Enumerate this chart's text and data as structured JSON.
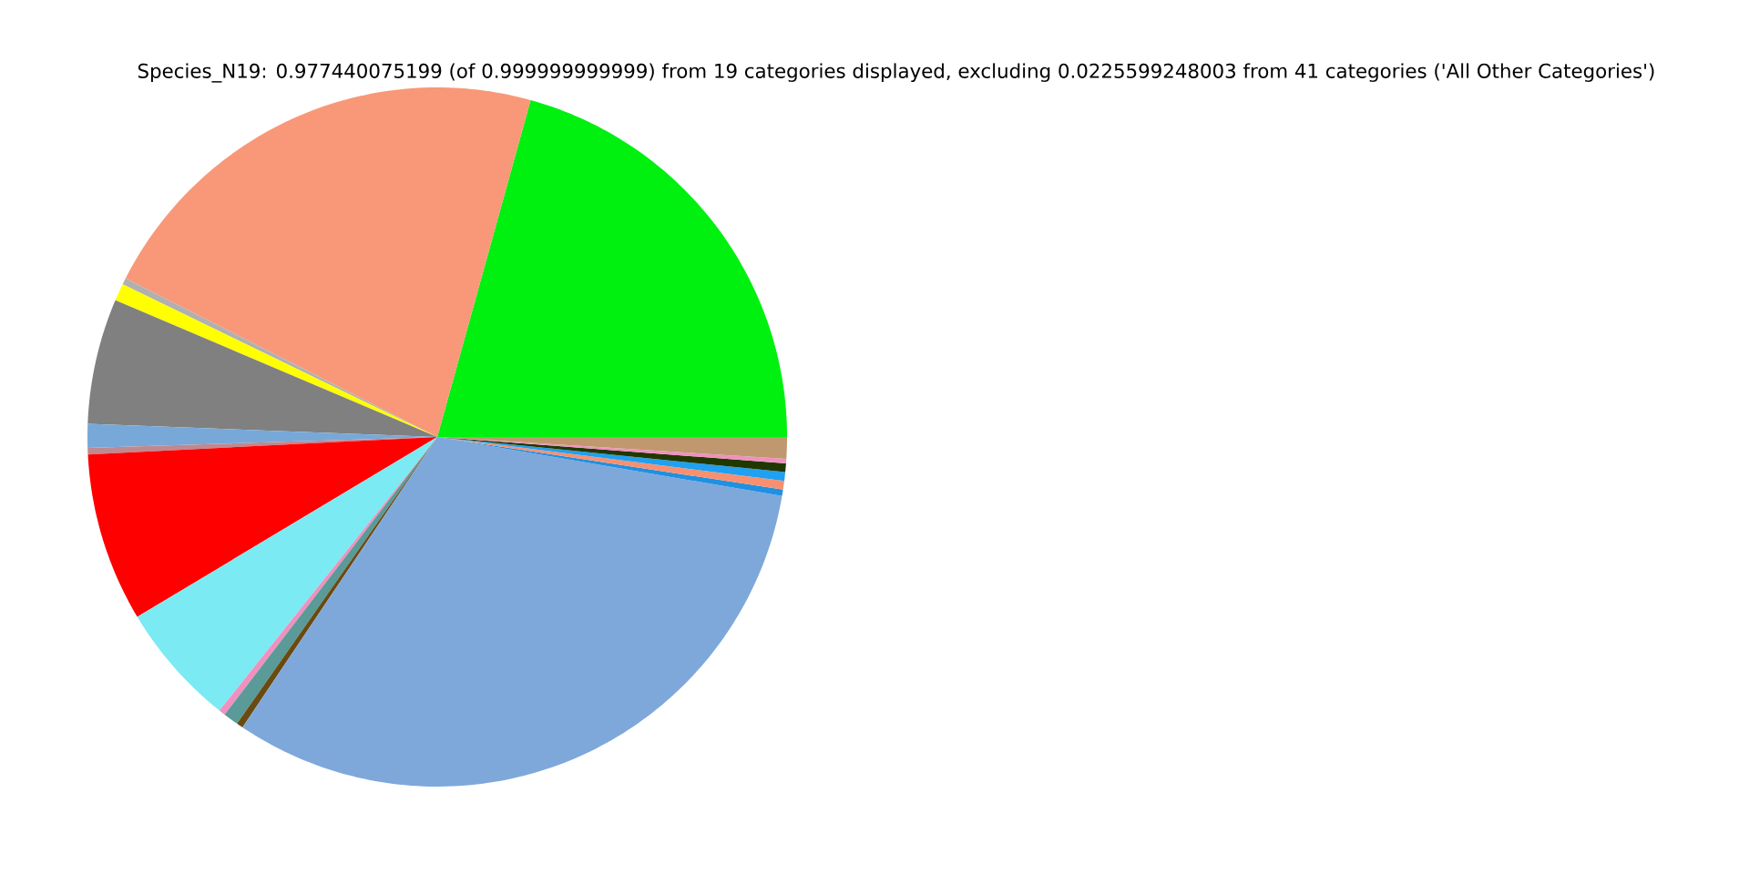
{
  "chart_data": {
    "type": "pie",
    "title": "Species_N19: 0.977440075199 (of 0.999999999999) from 19 categories displayed, excluding 0.0225599248003 from 41 categories ('All Other Categories')",
    "categories": [
      null,
      null,
      null,
      null,
      null,
      null,
      null,
      null,
      null,
      null,
      null,
      null,
      null,
      null,
      null,
      null,
      null,
      null,
      null
    ],
    "values": [
      20.7,
      21.8,
      0.3,
      0.8,
      5.8,
      1.1,
      0.3,
      7.8,
      5.7,
      0.3,
      0.7,
      0.3,
      31.7,
      0.3,
      0.4,
      0.4,
      0.4,
      0.2,
      1.0
    ],
    "colors": [
      "#00f010",
      "#f89878",
      "#b0b0b0",
      "#ffff00",
      "#808080",
      "#78a8d8",
      "#c08890",
      "#ff0000",
      "#7ceaf2",
      "#f090c0",
      "#5a9a98",
      "#6a4a10",
      "#7ea8da",
      "#2090e0",
      "#f89070",
      "#20a0f0",
      "#203800",
      "#f090c0",
      "#c09870"
    ]
  }
}
